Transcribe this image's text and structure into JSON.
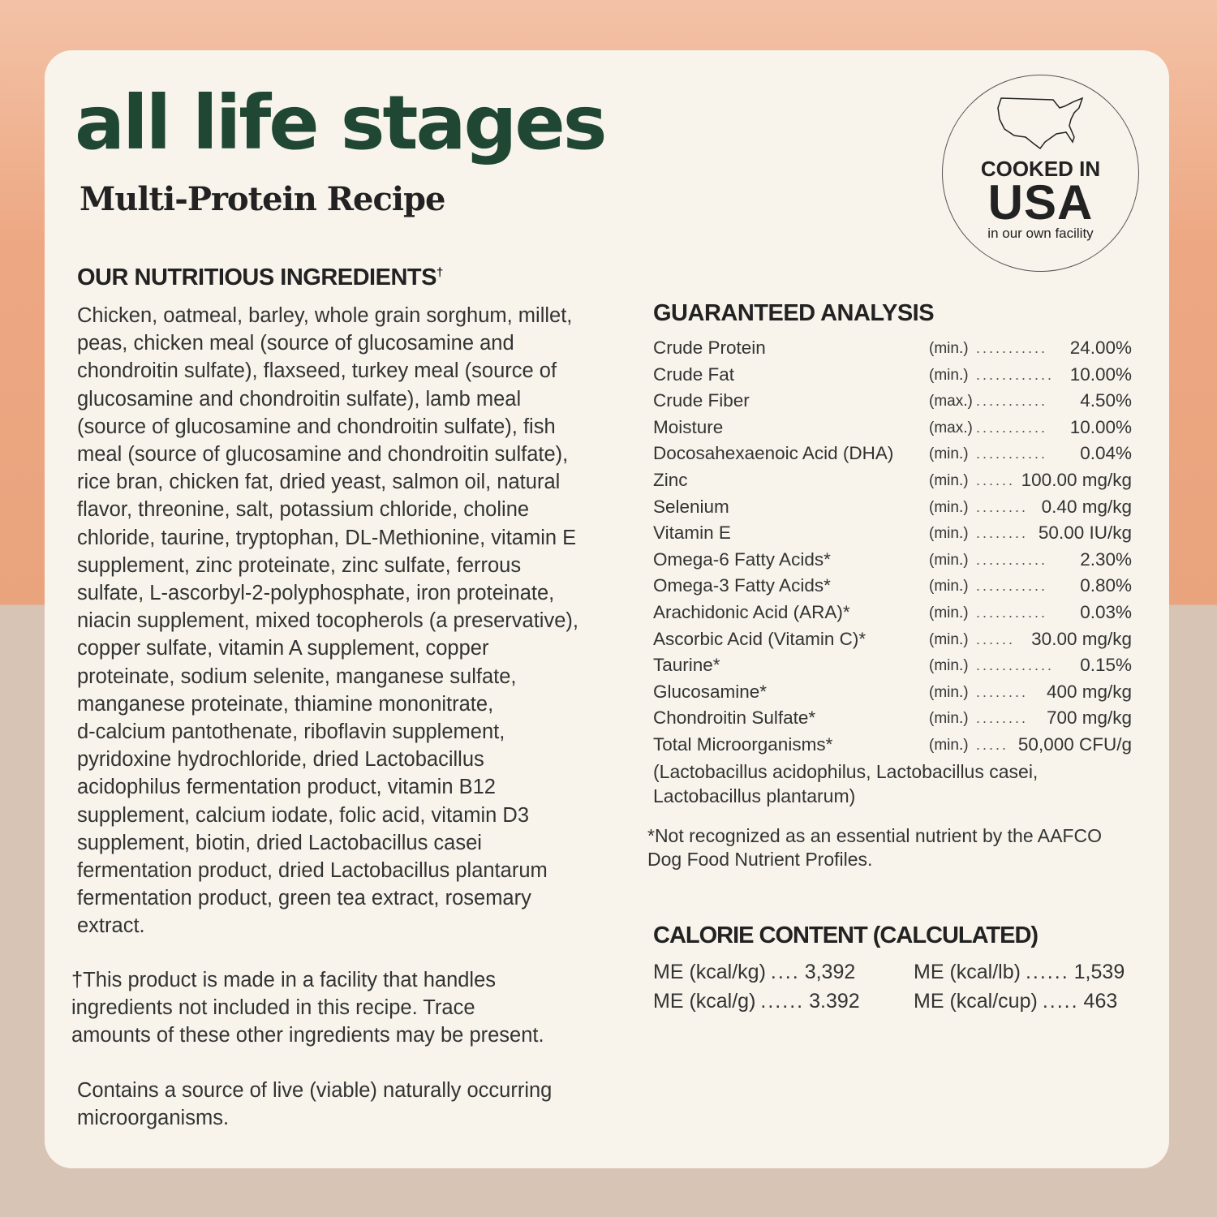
{
  "header": {
    "title": "all life stages",
    "subtitle": "Multi-Protein Recipe"
  },
  "badge": {
    "icon": "usa-map-icon",
    "line1": "COOKED IN",
    "line2": "USA",
    "line3": "in our own facility"
  },
  "ingredients": {
    "heading": "OUR NUTRITIOUS INGREDIENTS",
    "heading_mark": "†",
    "lines": [
      "Chicken, oatmeal, barley, whole grain sorghum, millet,",
      "peas, chicken meal (source of glucosamine and",
      "chondroitin sulfate), flaxseed, turkey meal (source of",
      "glucosamine and chondroitin sulfate), lamb meal",
      "(source of glucosamine and chondroitin sulfate), fish",
      "meal (source of glucosamine and chondroitin sulfate),",
      "rice bran, chicken fat, dried yeast, salmon oil, natural",
      "flavor, threonine, salt, potassium chloride, choline",
      "chloride, taurine, tryptophan, DL-Methionine, vitamin E",
      "supplement, zinc proteinate, zinc sulfate, ferrous",
      "sulfate, L-ascorbyl-2-polyphosphate, iron proteinate,",
      "niacin supplement, mixed tocopherols (a preservative),",
      "copper sulfate, vitamin A supplement, copper",
      "proteinate, sodium selenite, manganese sulfate,",
      "manganese proteinate, thiamine mononitrate,",
      "d-calcium pantothenate, riboflavin supplement,",
      "pyridoxine hydrochloride, dried Lactobacillus",
      "acidophilus fermentation product, vitamin B12",
      "supplement, calcium iodate, folic acid, vitamin D3",
      "supplement, biotin, dried Lactobacillus casei",
      "fermentation product, dried Lactobacillus plantarum",
      "fermentation product, green tea extract, rosemary",
      "extract."
    ],
    "facility_note": [
      "†This product is made in a facility that handles",
      "ingredients not included in this recipe. Trace",
      "amounts of these other ingredients may be present."
    ],
    "live_note": [
      "Contains a source of live (viable) naturally occurring",
      "microorganisms."
    ]
  },
  "analysis": {
    "heading": "GUARANTEED ANALYSIS",
    "rows": [
      {
        "label": "Crude Protein",
        "q": "(min.)",
        "dots": "...........",
        "value": "24.00%"
      },
      {
        "label": "Crude Fat",
        "q": "(min.)",
        "dots": "............",
        "value": "10.00%"
      },
      {
        "label": "Crude Fiber",
        "q": "(max.)",
        "dots": "...........",
        "value": "4.50%"
      },
      {
        "label": "Moisture",
        "q": "(max.)",
        "dots": "...........",
        "value": "10.00%"
      },
      {
        "label": "Docosahexaenoic Acid (DHA)",
        "q": "(min.)",
        "dots": "...........",
        "value": "0.04%"
      },
      {
        "label": "Zinc",
        "q": "(min.)",
        "dots": "......",
        "value": "100.00 mg/kg"
      },
      {
        "label": "Selenium",
        "q": "(min.)",
        "dots": "........",
        "value": "0.40 mg/kg"
      },
      {
        "label": "Vitamin E",
        "q": "(min.)",
        "dots": "........",
        "value": "50.00 IU/kg"
      },
      {
        "label": "Omega-6 Fatty Acids*",
        "q": "(min.)",
        "dots": "...........",
        "value": "2.30%"
      },
      {
        "label": "Omega-3 Fatty Acids*",
        "q": "(min.)",
        "dots": "...........",
        "value": "0.80%"
      },
      {
        "label": "Arachidonic Acid (ARA)*",
        "q": "(min.)",
        "dots": "...........",
        "value": "0.03%"
      },
      {
        "label": "Ascorbic Acid (Vitamin C)*",
        "q": "(min.)",
        "dots": "......",
        "value": "30.00 mg/kg"
      },
      {
        "label": "Taurine*",
        "q": "(min.)",
        "dots": "............",
        "value": "0.15%"
      },
      {
        "label": "Glucosamine*",
        "q": "(min.)",
        "dots": "........",
        "value": "400 mg/kg"
      },
      {
        "label": "Chondroitin Sulfate*",
        "q": "(min.)",
        "dots": "........",
        "value": "700 mg/kg"
      },
      {
        "label": "Total Microorganisms*",
        "q": "(min.)",
        "dots": ".....",
        "value": "50,000 CFU/g"
      }
    ],
    "strains": [
      "(Lactobacillus acidophilus, Lactobacillus casei,",
      "Lactobacillus plantarum)"
    ],
    "footnote": [
      "*Not recognized as an essential nutrient by the AAFCO",
      "Dog Food Nutrient Profiles."
    ]
  },
  "calories": {
    "heading": "CALORIE CONTENT (CALCULATED)",
    "items": [
      {
        "label": "ME (kcal/kg)",
        "dots": "....",
        "value": "3,392"
      },
      {
        "label": "ME (kcal/lb)",
        "dots": "......",
        "value": "1,539"
      },
      {
        "label": "ME (kcal/g)",
        "dots": "......",
        "value": "3.392"
      },
      {
        "label": "ME (kcal/cup)",
        "dots": ".....",
        "value": "463"
      }
    ]
  },
  "colors": {
    "title": "#1f4733",
    "card": "#f8f4ec",
    "top_bg": "#eda883",
    "bottom_bg": "#d8c4b4"
  }
}
